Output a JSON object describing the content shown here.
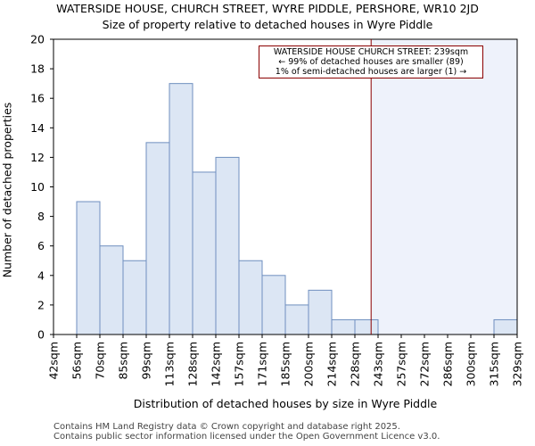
{
  "titles": {
    "line1": "WATERSIDE HOUSE, CHURCH STREET, WYRE PIDDLE, PERSHORE, WR10 2JD",
    "line2": "Size of property relative to detached houses in Wyre Piddle"
  },
  "footer": {
    "line1": "Contains HM Land Registry data © Crown copyright and database right 2025.",
    "line2": "Contains public sector information licensed under the Open Government Licence v3.0."
  },
  "annotation": {
    "line1": "WATERSIDE HOUSE CHURCH STREET: 239sqm",
    "line2": "← 99% of detached houses are smaller (89)",
    "line3": "1% of semi-detached houses are larger (1) →"
  },
  "colors": {
    "bar_fill": "#dce6f4",
    "bar_stroke": "#6f8fbf",
    "marker": "#8b0000",
    "shade": "#eef2fb"
  },
  "chart_data": {
    "type": "bar",
    "title": "Size of property relative to detached houses in Wyre Piddle",
    "xlabel": "Distribution of detached houses by size in Wyre Piddle",
    "ylabel": "Number of detached properties",
    "bin_edges": [
      "42sqm",
      "56sqm",
      "70sqm",
      "85sqm",
      "99sqm",
      "113sqm",
      "128sqm",
      "142sqm",
      "157sqm",
      "171sqm",
      "185sqm",
      "200sqm",
      "214sqm",
      "228sqm",
      "243sqm",
      "257sqm",
      "272sqm",
      "286sqm",
      "300sqm",
      "315sqm",
      "329sqm"
    ],
    "values": [
      0,
      9,
      6,
      5,
      13,
      17,
      11,
      12,
      5,
      4,
      2,
      3,
      1,
      1,
      0,
      0,
      0,
      0,
      0,
      1
    ],
    "ylim": [
      0,
      20
    ],
    "yticks": [
      0,
      2,
      4,
      6,
      8,
      10,
      12,
      14,
      16,
      18,
      20
    ],
    "marker_value": 239,
    "marker_bin_position": 13.7,
    "grid": false
  }
}
